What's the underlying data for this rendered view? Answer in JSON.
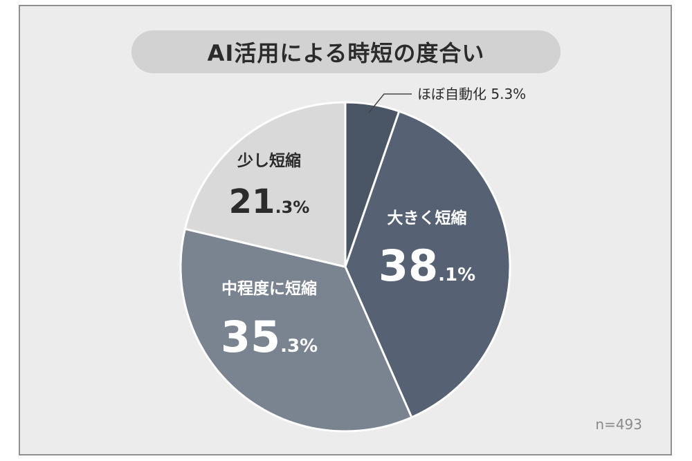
{
  "title": "AI活用による時短の度合い",
  "sample_size": "n=493",
  "chart_data": {
    "type": "pie",
    "title": "AI活用による時短の度合い",
    "slices": [
      {
        "label": "ほぼ自動化",
        "value": 5.3,
        "int": "5",
        "dec": ".3%",
        "color": "#4a5565",
        "label_color": "#2b2b2b"
      },
      {
        "label": "大きく短縮",
        "value": 38.1,
        "int": "38",
        "dec": ".1%",
        "color": "#566273",
        "label_color": "#ffffff"
      },
      {
        "label": "中程度に短縮",
        "value": 35.3,
        "int": "35",
        "dec": ".3%",
        "color": "#7a8390",
        "label_color": "#ffffff"
      },
      {
        "label": "少し短縮",
        "value": 21.3,
        "int": "21",
        "dec": ".3%",
        "color": "#d9d9d9",
        "label_color": "#2b2b2b"
      }
    ],
    "small_label": "ほぼ自動化 5.3%",
    "start": "12 o'clock",
    "direction": "clockwise"
  }
}
